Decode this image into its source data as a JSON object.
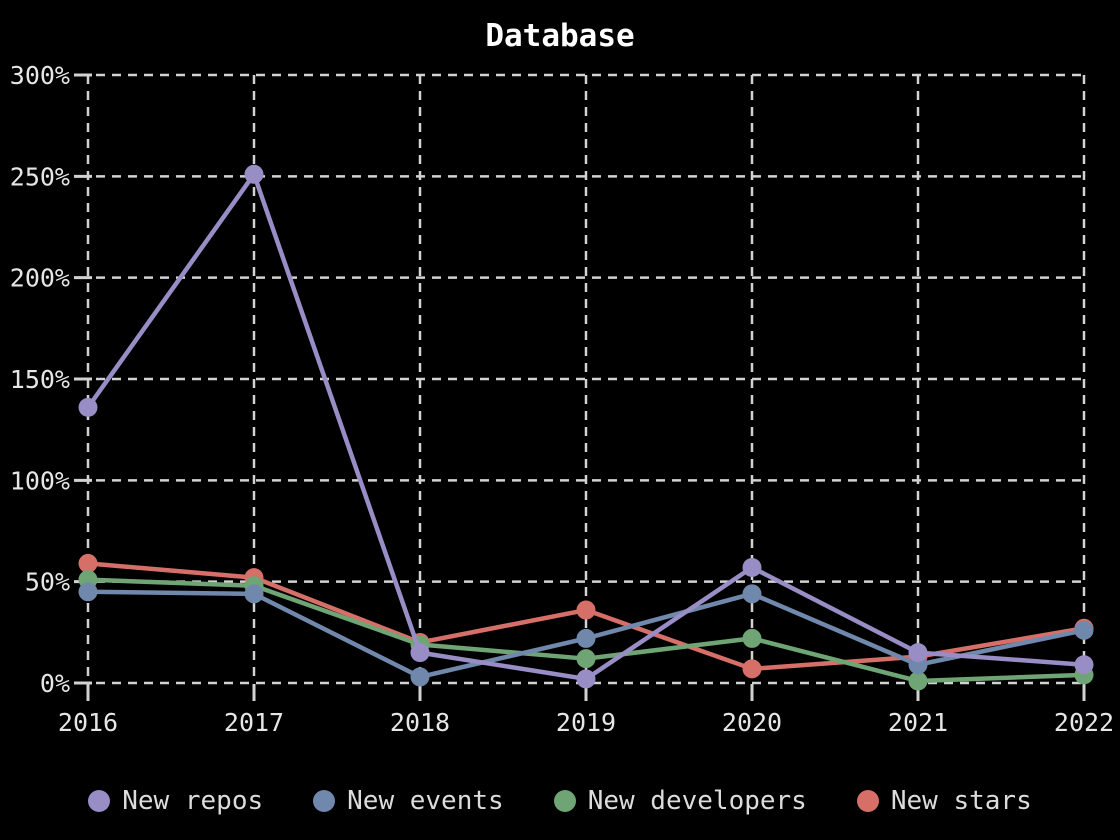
{
  "title": "Database",
  "colors": {
    "background": "#000000",
    "grid": "#d2d2d2",
    "axis_text": "#e6e6e6",
    "title_text": "#ffffff",
    "legend_text": "#dcdcdc"
  },
  "chart_data": {
    "type": "line",
    "title": "Database",
    "x": [
      "2016",
      "2017",
      "2018",
      "2019",
      "2020",
      "2021",
      "2022"
    ],
    "series": [
      {
        "name": "New repos",
        "color": "#988dc5",
        "values": [
          136,
          251,
          15,
          2,
          57,
          15,
          9
        ]
      },
      {
        "name": "New events",
        "color": "#6f88ab",
        "values": [
          45,
          44,
          3,
          22,
          44,
          9,
          26
        ]
      },
      {
        "name": "New developers",
        "color": "#6fa474",
        "values": [
          51,
          48,
          19,
          12,
          22,
          1,
          4
        ]
      },
      {
        "name": "New stars",
        "color": "#d76f69",
        "values": [
          59,
          52,
          20,
          36,
          7,
          13,
          27
        ]
      }
    ],
    "xlabel": "",
    "ylabel": "",
    "ylim": [
      0,
      300
    ],
    "y_tick_values": [
      0,
      50,
      100,
      150,
      200,
      250,
      300
    ],
    "y_ticks": [
      "0%",
      "50%",
      "100%",
      "150%",
      "200%",
      "250%",
      "300%"
    ],
    "grid": "dashed",
    "legend_position": "bottom",
    "marker": "circle"
  }
}
